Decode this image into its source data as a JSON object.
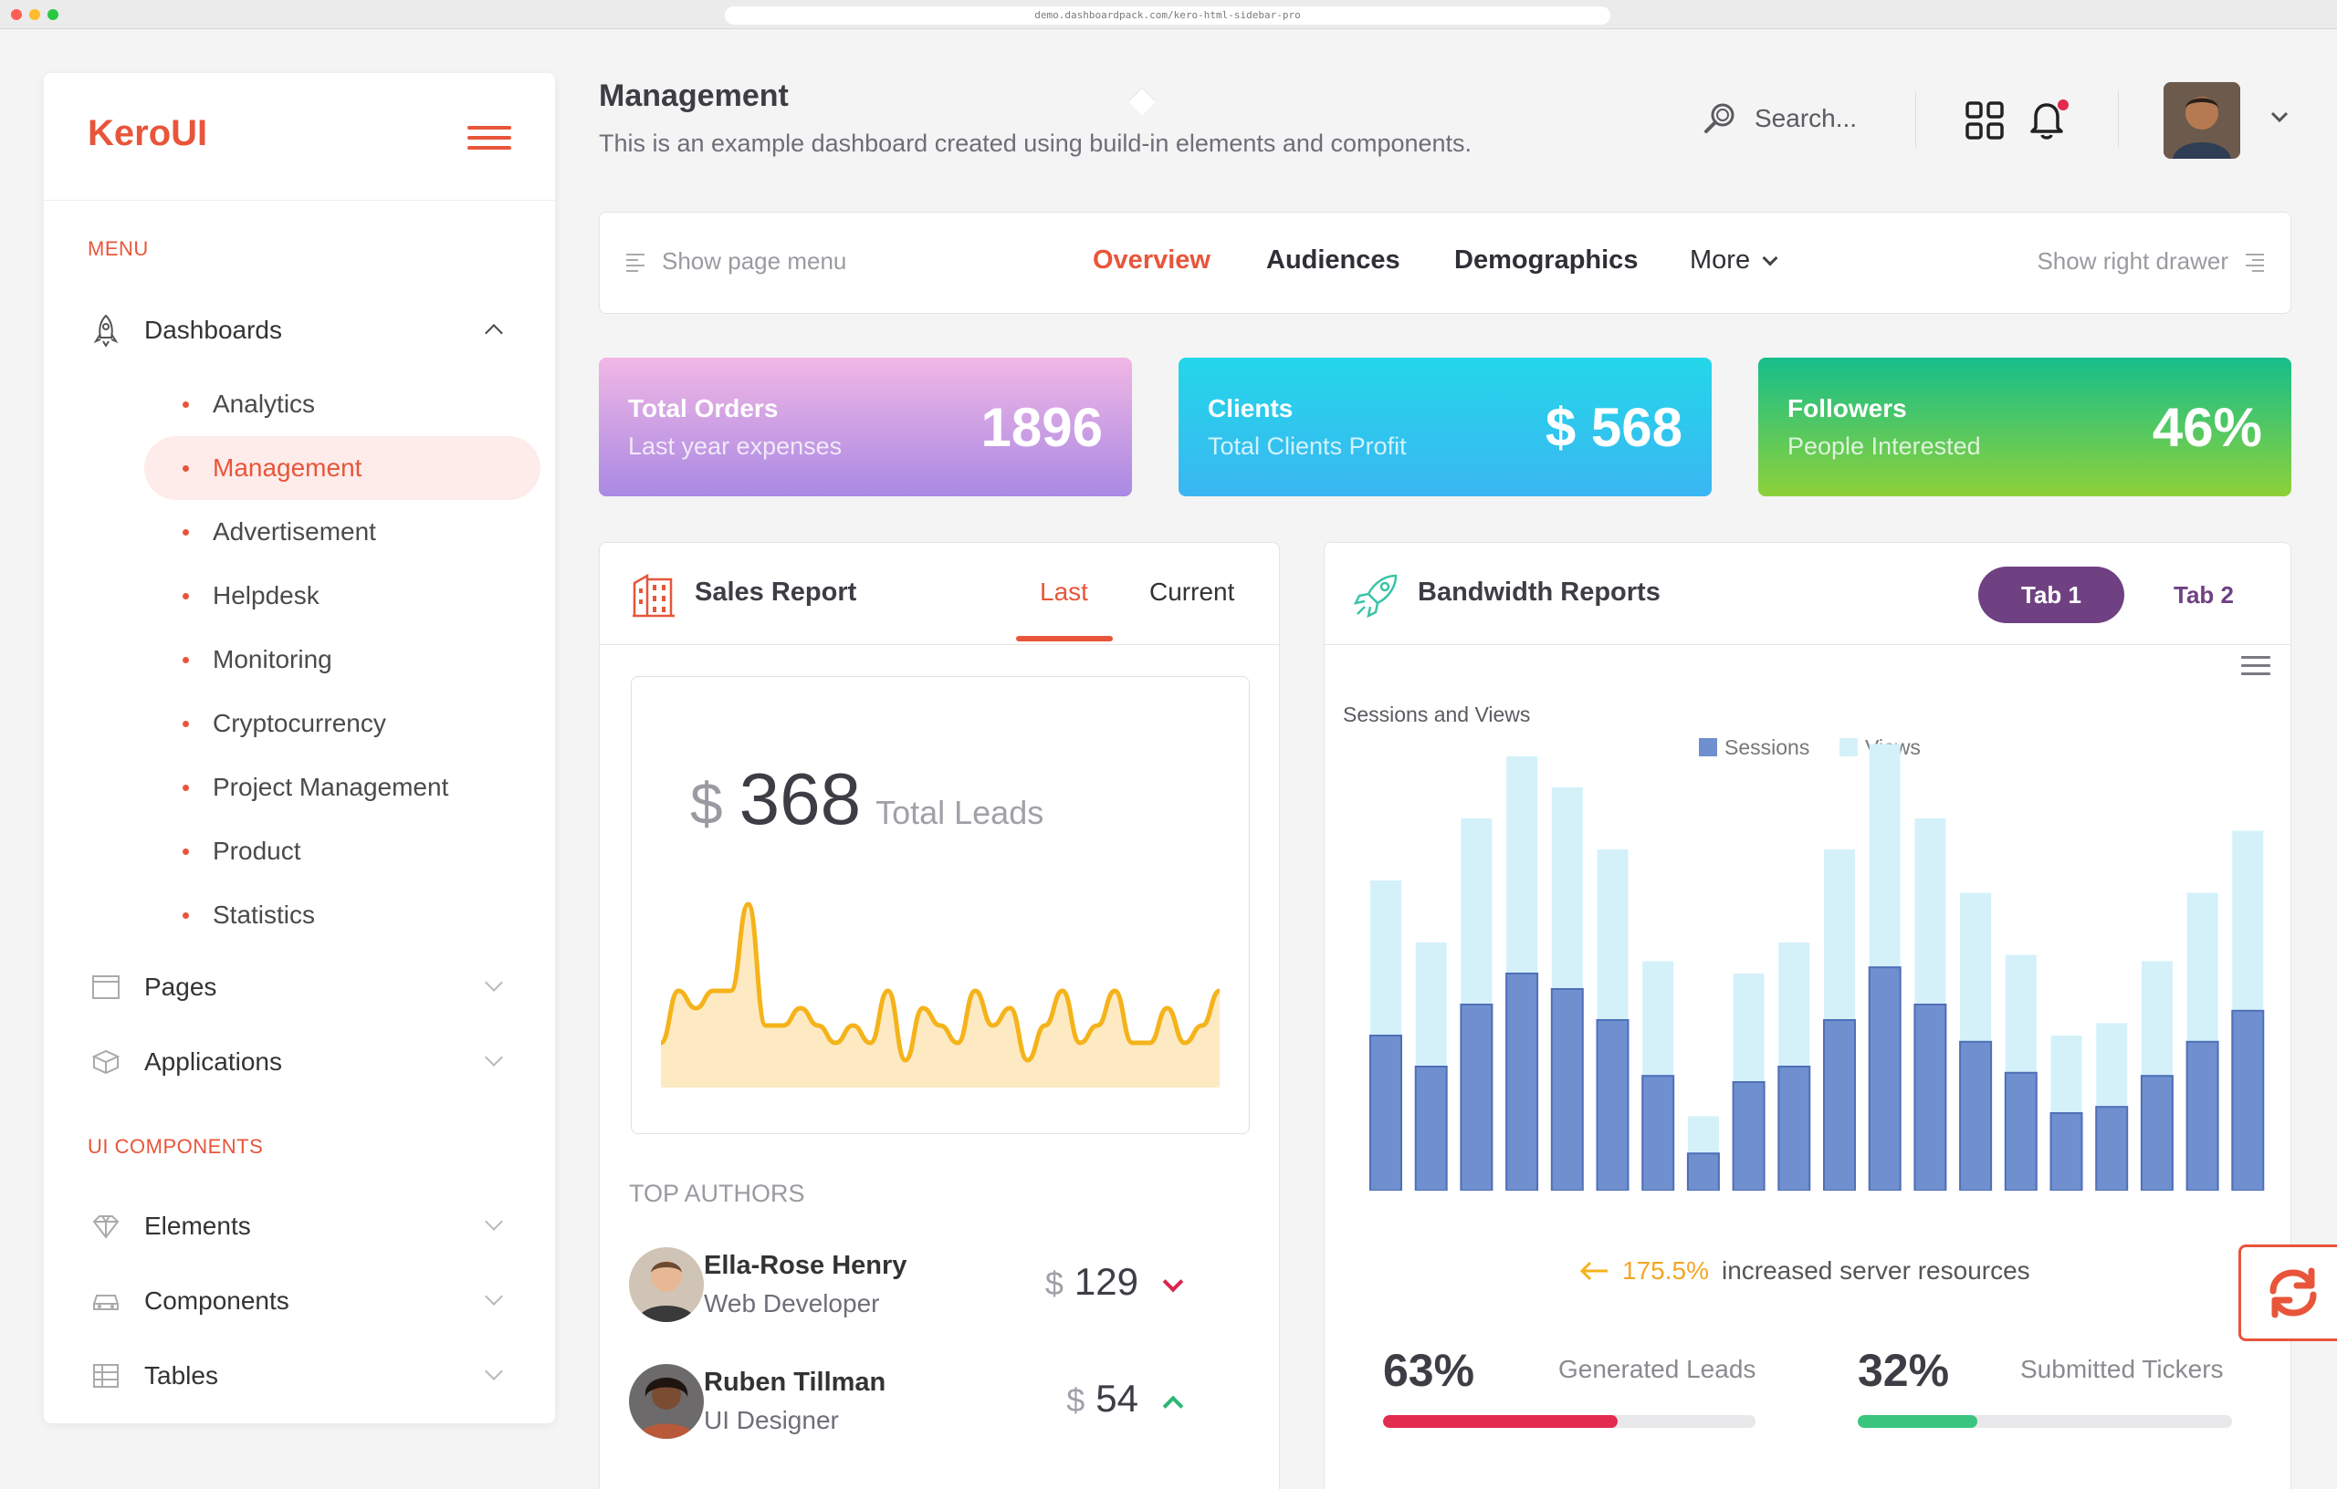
{
  "browser": {
    "url": "demo.dashboardpack.com/kero-html-sidebar-pro"
  },
  "brand": {
    "logo": "KeroUI",
    "accent": "#e8553a"
  },
  "sidebar": {
    "menu_label": "MENU",
    "dashboards": {
      "label": "Dashboards",
      "items": [
        "Analytics",
        "Management",
        "Advertisement",
        "Helpdesk",
        "Monitoring",
        "Cryptocurrency",
        "Project Management",
        "Product",
        "Statistics"
      ],
      "active": "Management"
    },
    "pages": "Pages",
    "applications": "Applications",
    "ui_label": "UI COMPONENTS",
    "elements": "Elements",
    "components": "Components",
    "tables": "Tables"
  },
  "header": {
    "title": "Management",
    "subtitle": "This is an example dashboard created using build-in elements and components.",
    "search_placeholder": "Search..."
  },
  "page_tabs": {
    "show_menu": "Show page menu",
    "tabs": [
      "Overview",
      "Audiences",
      "Demographics",
      "More"
    ],
    "active": "Overview",
    "show_drawer": "Show right drawer"
  },
  "cards": [
    {
      "title": "Total Orders",
      "subtitle": "Last year expenses",
      "value": "1896",
      "gradient": [
        "#f1b7e5",
        "#a989e3"
      ]
    },
    {
      "title": "Clients",
      "subtitle": "Total Clients Profit",
      "value": "$ 568",
      "gradient": [
        "#23d7e9",
        "#3bb6f2"
      ]
    },
    {
      "title": "Followers",
      "subtitle": "People Interested",
      "value": "46%",
      "gradient": [
        "#16be8b",
        "#8ed13a"
      ]
    }
  ],
  "sales": {
    "title": "Sales Report",
    "tabs": [
      "Last",
      "Current"
    ],
    "active_tab": "Last",
    "currency": "$",
    "value": "368",
    "value_label": "Total Leads",
    "sparkline": [
      1,
      4,
      3,
      4,
      4,
      9,
      2,
      2,
      3,
      2,
      1,
      2,
      1,
      4,
      0,
      3,
      2,
      1,
      4,
      2,
      3,
      0,
      2,
      4,
      1,
      2,
      4,
      1,
      1,
      3,
      1,
      2,
      4
    ]
  },
  "authors": {
    "label": "TOP AUTHORS",
    "list": [
      {
        "name": "Ella-Rose Henry",
        "role": "Web Developer",
        "currency": "$",
        "amount": "129",
        "trend": "down"
      },
      {
        "name": "Ruben Tillman",
        "role": "UI Designer",
        "currency": "$",
        "amount": "54",
        "trend": "up"
      }
    ]
  },
  "bandwidth": {
    "title": "Bandwidth Reports",
    "tabs": [
      "Tab 1",
      "Tab 2"
    ],
    "active_tab": "Tab 1",
    "change_value": "175.5%",
    "change_text": "increased server resources",
    "metrics": [
      {
        "value": "63%",
        "label": "Generated Leads",
        "fraction": 0.63,
        "color": "#e22b4f"
      },
      {
        "value": "32%",
        "label": "Submitted Tickers",
        "fraction": 0.32,
        "color": "#3ac47d"
      }
    ]
  },
  "chart_data": {
    "type": "bar",
    "title": "Sessions and Views",
    "stacked": true,
    "series": [
      {
        "name": "Sessions",
        "color": "#6f8fcf",
        "values": [
          50,
          40,
          60,
          70,
          65,
          55,
          37,
          12,
          35,
          40,
          55,
          72,
          60,
          48,
          38,
          25,
          27,
          37,
          48,
          58
        ]
      },
      {
        "name": "Views",
        "color": "#d4f1fa",
        "values": [
          50,
          40,
          60,
          70,
          65,
          55,
          37,
          12,
          35,
          40,
          55,
          72,
          60,
          48,
          38,
          25,
          27,
          37,
          48,
          58
        ]
      }
    ],
    "legend": "top-center",
    "grid": false
  }
}
